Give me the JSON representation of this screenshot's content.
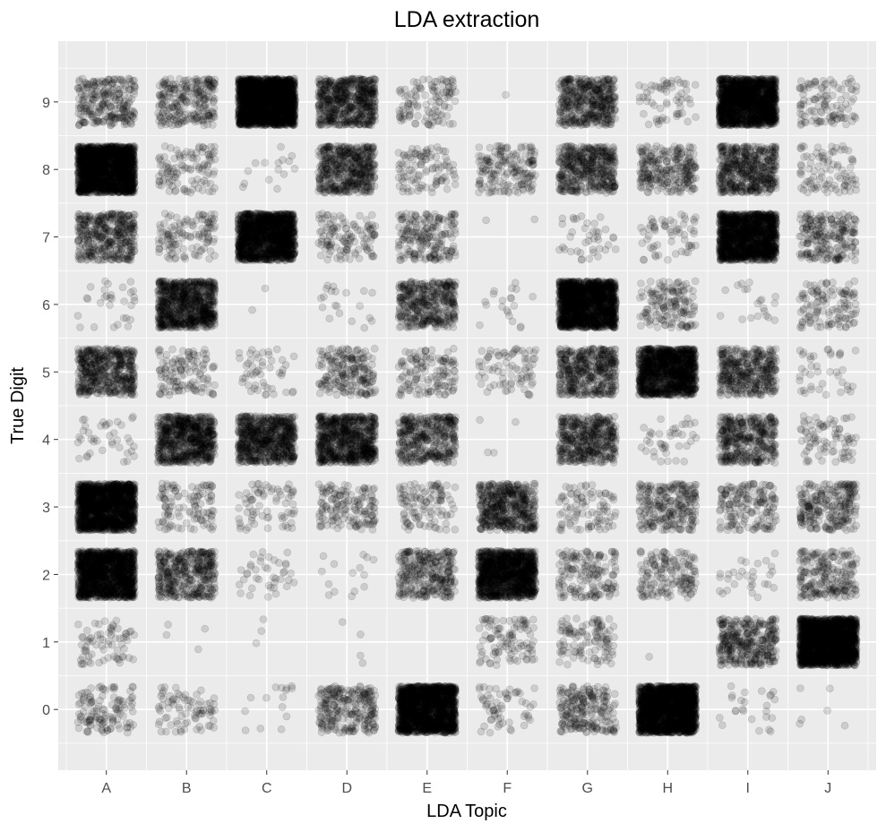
{
  "chart_data": {
    "type": "scatter",
    "title": "LDA extraction",
    "xlabel": "LDA Topic",
    "ylabel": "True Digit",
    "x_categories": [
      "A",
      "B",
      "C",
      "D",
      "E",
      "F",
      "G",
      "H",
      "I",
      "J"
    ],
    "y_ticks": [
      0,
      1,
      2,
      3,
      4,
      5,
      6,
      7,
      8,
      9
    ],
    "ylim": [
      -0.9,
      9.9
    ],
    "jitter": 0.4,
    "point_color": "#000000",
    "point_opacity": 0.13,
    "panel_background": "#ebebeb",
    "grid": true,
    "grid_color": "#ffffff",
    "cell_point_counts": {
      "rows_true_digit": [
        "0",
        "1",
        "2",
        "3",
        "4",
        "5",
        "6",
        "7",
        "8",
        "9"
      ],
      "columns_topic": [
        "A",
        "B",
        "C",
        "D",
        "E",
        "F",
        "G",
        "H",
        "I",
        "J"
      ],
      "values": [
        [
          120,
          80,
          15,
          250,
          1600,
          60,
          220,
          1800,
          25,
          6
        ],
        [
          70,
          4,
          3,
          4,
          0,
          100,
          110,
          1,
          350,
          1800
        ],
        [
          1400,
          400,
          40,
          15,
          300,
          1200,
          160,
          160,
          30,
          220
        ],
        [
          1500,
          110,
          70,
          150,
          110,
          500,
          90,
          250,
          170,
          250
        ],
        [
          40,
          700,
          700,
          750,
          400,
          4,
          450,
          40,
          400,
          80
        ],
        [
          500,
          120,
          50,
          200,
          130,
          80,
          450,
          1200,
          400,
          40
        ],
        [
          30,
          800,
          2,
          20,
          400,
          20,
          1500,
          150,
          20,
          120
        ],
        [
          400,
          120,
          1400,
          120,
          200,
          2,
          40,
          60,
          1400,
          220
        ],
        [
          1700,
          110,
          15,
          500,
          100,
          170,
          450,
          250,
          500,
          90
        ],
        [
          250,
          250,
          2000,
          600,
          110,
          1,
          450,
          60,
          1500,
          110
        ]
      ]
    }
  }
}
